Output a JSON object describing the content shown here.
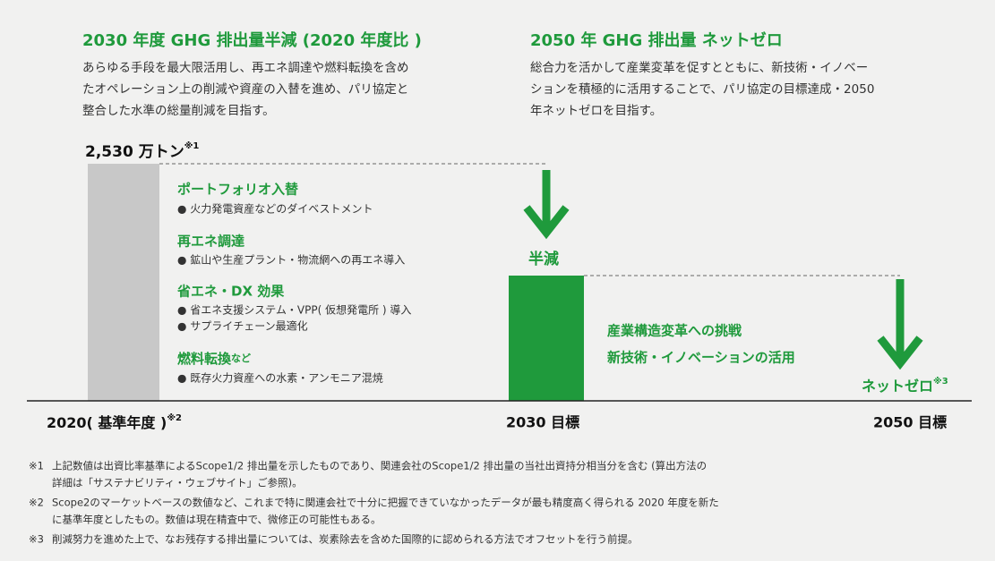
{
  "left_goal": {
    "title": "2030 年度 GHG 排出量半減 (2020 年度比 )",
    "description": [
      "あらゆる手段を最大限活用し、再エネ調達や燃料転換を含め",
      "たオペレーション上の削減や資産の入替を進め、パリ協定と",
      "整合した水準の総量削減を目指す。"
    ]
  },
  "right_goal": {
    "title": "2050 年 GHG 排出量 ネットゼロ",
    "description": [
      "総合力を活かして産業変革を促すとともに、新技術・イノベー",
      "ションを積極的に活用することで、パリ協定の目標達成・2050",
      "年ネットゼロを目指す。"
    ]
  },
  "baseline": {
    "amount": "2,530 万トン",
    "note": "※1"
  },
  "levers": [
    {
      "name": "ポートフォリオ入替",
      "items": [
        "● 火力発電資産などのダイベストメント"
      ]
    },
    {
      "name": "再エネ調達",
      "items": [
        "● 鉱山や生産プラント・物流網への再エネ導入"
      ]
    },
    {
      "name": "省エネ・DX 効果",
      "items": [
        "● 省エネ支援システム・VPP( 仮想発電所 ) 導入",
        "● サプライチェーン最適化"
      ]
    },
    {
      "name": "燃料転換",
      "suffix": "など",
      "items": [
        "● 既存火力資産への水素・アンモニア混焼"
      ]
    }
  ],
  "halve_label": "半減",
  "transformation": [
    "産業構造変革への挑戦",
    "新技術・イノベーションの活用"
  ],
  "net_zero": {
    "label": "ネットゼロ",
    "note": "※3"
  },
  "timeline": [
    {
      "label": "2020( 基準年度 )",
      "note": "※2"
    },
    {
      "label": "2030 目標"
    },
    {
      "label": "2050 目標"
    }
  ],
  "footnotes": [
    {
      "mark": "※1",
      "lines": [
        "上記数値は出資比率基準によるScope1/2 排出量を示したものであり、関連会社のScope1/2 排出量の当社出資持分相当分を含む (算出方法の",
        "詳細は「サステナビリティ・ウェブサイト」ご参照)。"
      ]
    },
    {
      "mark": "※2",
      "lines": [
        "Scope2のマーケットベースの数値など、これまで特に関連会社で十分に把握できていなかったデータが最も精度高く得られる 2020 年度を新た",
        "に基準年度としたもの。数値は現在精査中で、微修正の可能性もある。"
      ]
    },
    {
      "mark": "※3",
      "lines": [
        "削減努力を進めた上で、なお残存する排出量については、炭素除去を含めた国際的に認められる方法でオフセットを行う前提。"
      ]
    }
  ]
}
